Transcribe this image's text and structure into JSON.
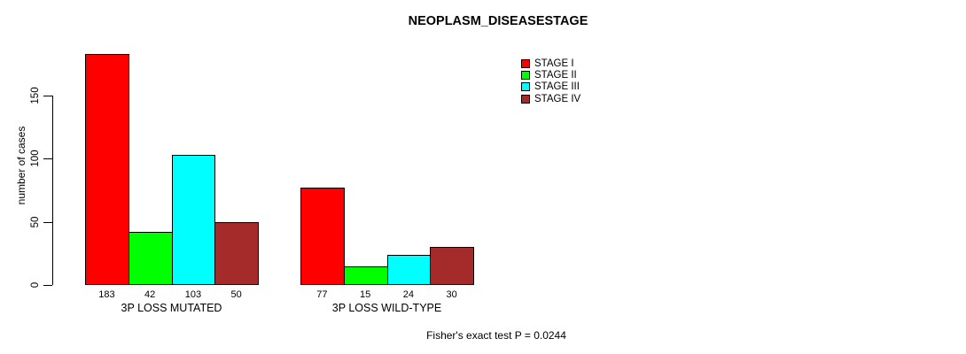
{
  "chart_data": {
    "type": "bar",
    "title": "NEOPLASM_DISEASESTAGE",
    "xlabel": "",
    "ylabel": "number of cases",
    "ylim": [
      0,
      190
    ],
    "yticks": [
      0,
      50,
      100,
      150
    ],
    "categories": [
      "STAGE I",
      "STAGE II",
      "STAGE III",
      "STAGE IV"
    ],
    "colors": [
      "#FF0000",
      "#00FF00",
      "#00FFFF",
      "#A52A2A"
    ],
    "groups": [
      {
        "label": "3P LOSS MUTATED",
        "values": [
          183,
          42,
          103,
          50
        ]
      },
      {
        "label": "3P LOSS WILD-TYPE",
        "values": [
          77,
          15,
          24,
          30
        ]
      }
    ],
    "legend_position": "top-right",
    "grid": false,
    "annotation": "Fisher's exact test P = 0.0244"
  }
}
